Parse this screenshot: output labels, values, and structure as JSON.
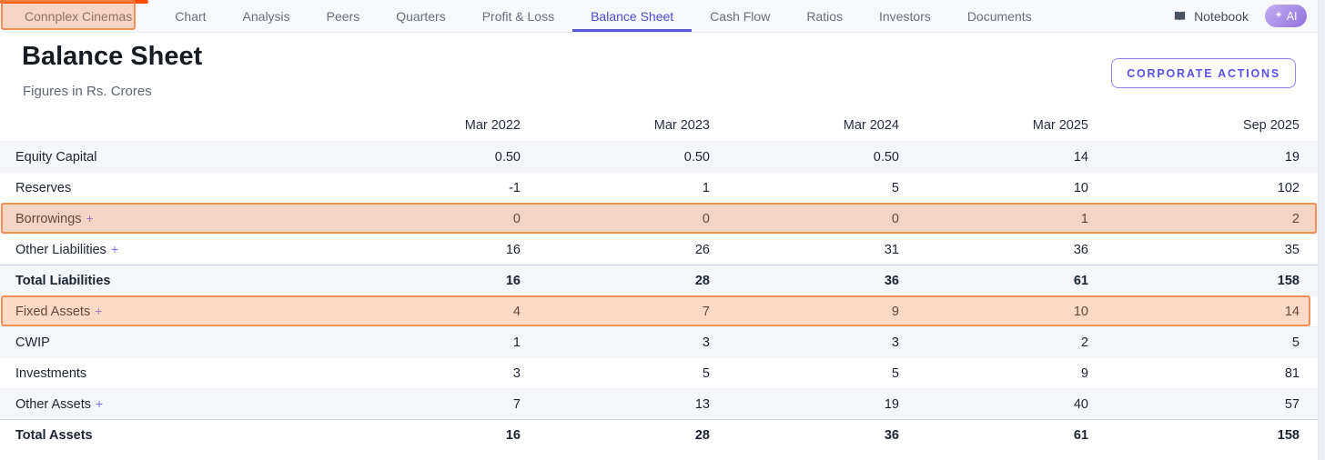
{
  "nav": {
    "company": "Connplex Cinemas",
    "tabs": [
      {
        "label": "Chart",
        "active": false
      },
      {
        "label": "Analysis",
        "active": false
      },
      {
        "label": "Peers",
        "active": false
      },
      {
        "label": "Quarters",
        "active": false
      },
      {
        "label": "Profit & Loss",
        "active": false
      },
      {
        "label": "Balance Sheet",
        "active": true
      },
      {
        "label": "Cash Flow",
        "active": false
      },
      {
        "label": "Ratios",
        "active": false
      },
      {
        "label": "Investors",
        "active": false
      },
      {
        "label": "Documents",
        "active": false
      }
    ],
    "notebook_label": "Notebook",
    "notebook_icon": "book",
    "ai_label": "AI",
    "ai_icon": "sparkle"
  },
  "header": {
    "title": "Balance Sheet",
    "subtitle": "Figures in Rs. Crores",
    "corporate_actions_label": "CORPORATE ACTIONS"
  },
  "table": {
    "columns": [
      "Mar 2022",
      "Mar 2023",
      "Mar 2024",
      "Mar 2025",
      "Sep 2025"
    ],
    "expand_symbol": "+",
    "rows": [
      {
        "label": "Equity Capital",
        "expandable": false,
        "total": false,
        "highlighted": false,
        "values": [
          "0.50",
          "0.50",
          "0.50",
          "14",
          "19"
        ]
      },
      {
        "label": "Reserves",
        "expandable": false,
        "total": false,
        "highlighted": false,
        "values": [
          "-1",
          "1",
          "5",
          "10",
          "102"
        ]
      },
      {
        "label": "Borrowings",
        "expandable": true,
        "total": false,
        "highlighted": true,
        "values": [
          "0",
          "0",
          "0",
          "1",
          "2"
        ]
      },
      {
        "label": "Other Liabilities",
        "expandable": true,
        "total": false,
        "highlighted": false,
        "values": [
          "16",
          "26",
          "31",
          "36",
          "35"
        ]
      },
      {
        "label": "Total Liabilities",
        "expandable": false,
        "total": true,
        "highlighted": false,
        "values": [
          "16",
          "28",
          "36",
          "61",
          "158"
        ]
      },
      {
        "label": "Fixed Assets",
        "expandable": true,
        "total": false,
        "highlighted": true,
        "values": [
          "4",
          "7",
          "9",
          "10",
          "14"
        ]
      },
      {
        "label": "CWIP",
        "expandable": false,
        "total": false,
        "highlighted": false,
        "values": [
          "1",
          "3",
          "3",
          "2",
          "5"
        ]
      },
      {
        "label": "Investments",
        "expandable": false,
        "total": false,
        "highlighted": false,
        "values": [
          "3",
          "5",
          "5",
          "9",
          "81"
        ]
      },
      {
        "label": "Other Assets",
        "expandable": true,
        "total": false,
        "highlighted": false,
        "values": [
          "7",
          "13",
          "19",
          "40",
          "57"
        ]
      },
      {
        "label": "Total Assets",
        "expandable": false,
        "total": true,
        "highlighted": false,
        "values": [
          "16",
          "28",
          "36",
          "61",
          "158"
        ]
      }
    ]
  },
  "annotations": {
    "highlighted_tab": "Connplex Cinemas",
    "highlighted_rows": [
      "Borrowings",
      "Fixed Assets"
    ]
  },
  "colors": {
    "accent": "#5a54d6",
    "highlight_fill": "rgba(246,140,78,0.32)",
    "highlight_border": "rgba(239,133,70,0.85)",
    "top_marker": "#ff4c00"
  }
}
